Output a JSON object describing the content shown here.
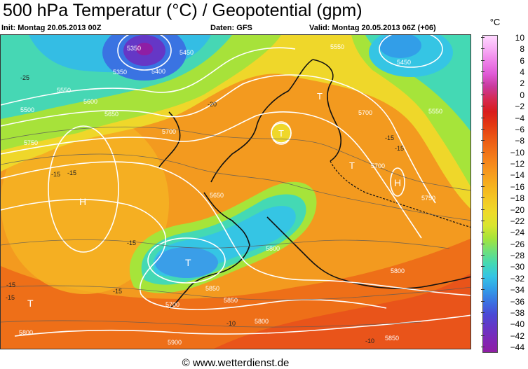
{
  "header": {
    "title": "500 hPa Temperatur (°C) / Geopotential (gpm)",
    "init": "Init: Montag 20.05.2013 00Z",
    "source": "Daten: GFS",
    "valid": "Valid: Montag 20.05.2013 06Z (+06)"
  },
  "footer": {
    "copyright": "© www.wetterdienst.de"
  },
  "legend": {
    "unit": "°C",
    "ticks": [
      "10",
      "8",
      "6",
      "4",
      "2",
      "0",
      "−2",
      "−4",
      "−6",
      "−8",
      "−10",
      "−12",
      "−14",
      "−16",
      "−18",
      "−20",
      "−22",
      "−24",
      "−26",
      "−28",
      "−30",
      "−32",
      "−34",
      "−36",
      "−38",
      "−40",
      "−42",
      "−44"
    ],
    "colors": [
      "#ffd8ff",
      "#f8b0f6",
      "#ee82e8",
      "#e05cd7",
      "#c93a9d",
      "#d52a52",
      "#d81c1c",
      "#e33712",
      "#ea5515",
      "#f06e18",
      "#f5861b",
      "#f69e1e",
      "#f5b51f",
      "#f3c925",
      "#eedb2a",
      "#d9e52f",
      "#a6e43a",
      "#6fe07a",
      "#44d9b4",
      "#35c5e4",
      "#329ee8",
      "#3a73e2",
      "#4a4ad6",
      "#6537c6",
      "#7e28b6",
      "#8f1ea4"
    ]
  },
  "map": {
    "pressure_labels": [
      {
        "text": "H",
        "name": "high-atlantic"
      },
      {
        "text": "T",
        "name": "low-iberia"
      },
      {
        "text": "T",
        "name": "low-west-atlantic"
      },
      {
        "text": "T",
        "name": "low-north-sea"
      },
      {
        "text": "H",
        "name": "high-russia"
      },
      {
        "text": "T",
        "name": "low-scandinavia"
      },
      {
        "text": "T",
        "name": "low-baltic"
      }
    ],
    "temperature_labels": [
      "-25",
      "-15",
      "-15",
      "-15",
      "-15",
      "-15",
      "-20",
      "-15",
      "-15",
      "-10",
      "-10",
      "-15"
    ],
    "height_labels": [
      "5450",
      "5350",
      "5400",
      "5550",
      "5600",
      "5650",
      "5700",
      "5750",
      "5800",
      "5800",
      "5850",
      "5450",
      "5350",
      "5500",
      "5550",
      "5700",
      "5700",
      "5700",
      "5800",
      "5800",
      "5850",
      "5550",
      "5850",
      "5900",
      "5750",
      "5650"
    ]
  }
}
